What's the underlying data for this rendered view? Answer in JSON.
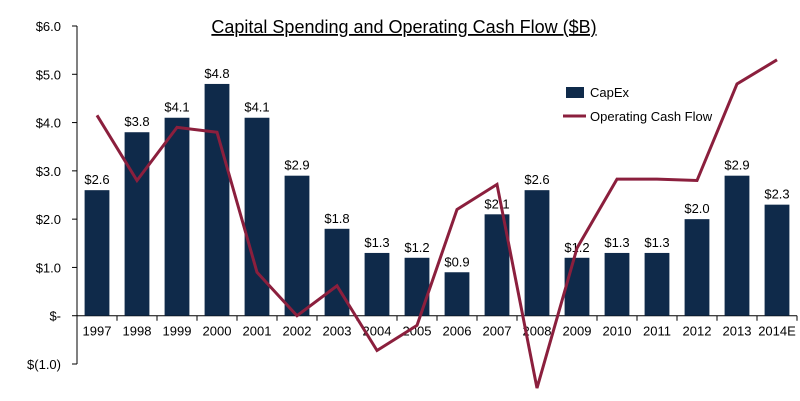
{
  "chart_data": {
    "type": "bar",
    "title": "Capital Spending and Operating Cash Flow ($B)",
    "categories": [
      "1997",
      "1998",
      "1999",
      "2000",
      "2001",
      "2002",
      "2003",
      "2004",
      "2005",
      "2006",
      "2007",
      "2008",
      "2009",
      "2010",
      "2011",
      "2012",
      "2013",
      "2014E"
    ],
    "ylim": [
      -1.0,
      6.0
    ],
    "yticks": [
      -1.0,
      0,
      1.0,
      2.0,
      3.0,
      4.0,
      5.0,
      6.0
    ],
    "ytick_labels": [
      "$(1.0)",
      "$-",
      "$1.0",
      "$2.0",
      "$3.0",
      "$4.0",
      "$5.0",
      "$6.0"
    ],
    "grid": false,
    "legend": "top-right",
    "series": [
      {
        "name": "CapEx",
        "type": "bar",
        "color": "#0f2a4a",
        "values": [
          2.6,
          3.8,
          4.1,
          4.8,
          4.1,
          2.9,
          1.8,
          1.3,
          1.2,
          0.9,
          2.1,
          2.6,
          1.2,
          1.3,
          1.3,
          2.0,
          2.9,
          2.3
        ],
        "labels": [
          "$2.6",
          "$3.8",
          "$4.1",
          "$4.8",
          "$4.1",
          "$2.9",
          "$1.8",
          "$1.3",
          "$1.2",
          "$0.9",
          "$2.1",
          "$2.6",
          "$1.2",
          "$1.3",
          "$1.3",
          "$2.0",
          "$2.9",
          "$2.3"
        ]
      },
      {
        "name": "Operating Cash Flow",
        "type": "line",
        "color": "#8b1f3d",
        "values": [
          4.15,
          2.8,
          3.9,
          3.8,
          0.9,
          0.0,
          0.62,
          -0.72,
          -0.2,
          2.2,
          2.72,
          -1.5,
          1.4,
          2.83,
          2.83,
          2.8,
          4.8,
          5.3
        ]
      }
    ]
  }
}
